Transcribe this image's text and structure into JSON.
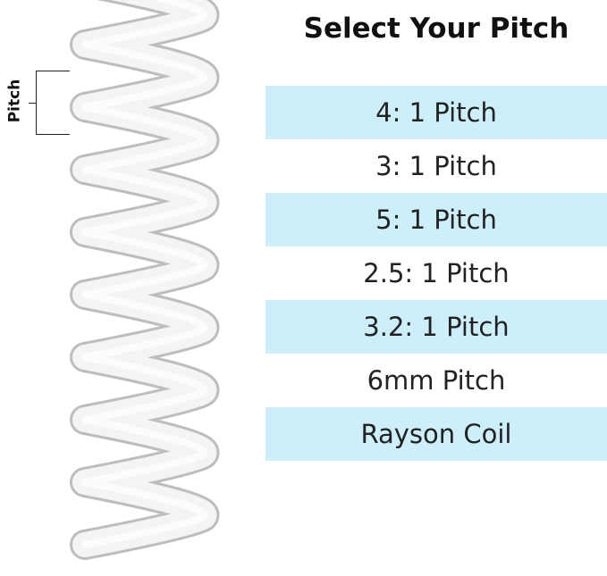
{
  "title": "Select Your Pitch",
  "diagram_label": "Pitch",
  "options": [
    {
      "label": "4: 1 Pitch",
      "highlighted": true
    },
    {
      "label": "3: 1 Pitch",
      "highlighted": false
    },
    {
      "label": "5: 1 Pitch",
      "highlighted": true
    },
    {
      "label": "2.5: 1 Pitch",
      "highlighted": false
    },
    {
      "label": "3.2: 1 Pitch",
      "highlighted": true
    },
    {
      "label": "6mm Pitch",
      "highlighted": false
    },
    {
      "label": "Rayson Coil",
      "highlighted": true
    }
  ],
  "colors": {
    "highlight": "#cdeefb",
    "coil": "#f4f4f4"
  }
}
